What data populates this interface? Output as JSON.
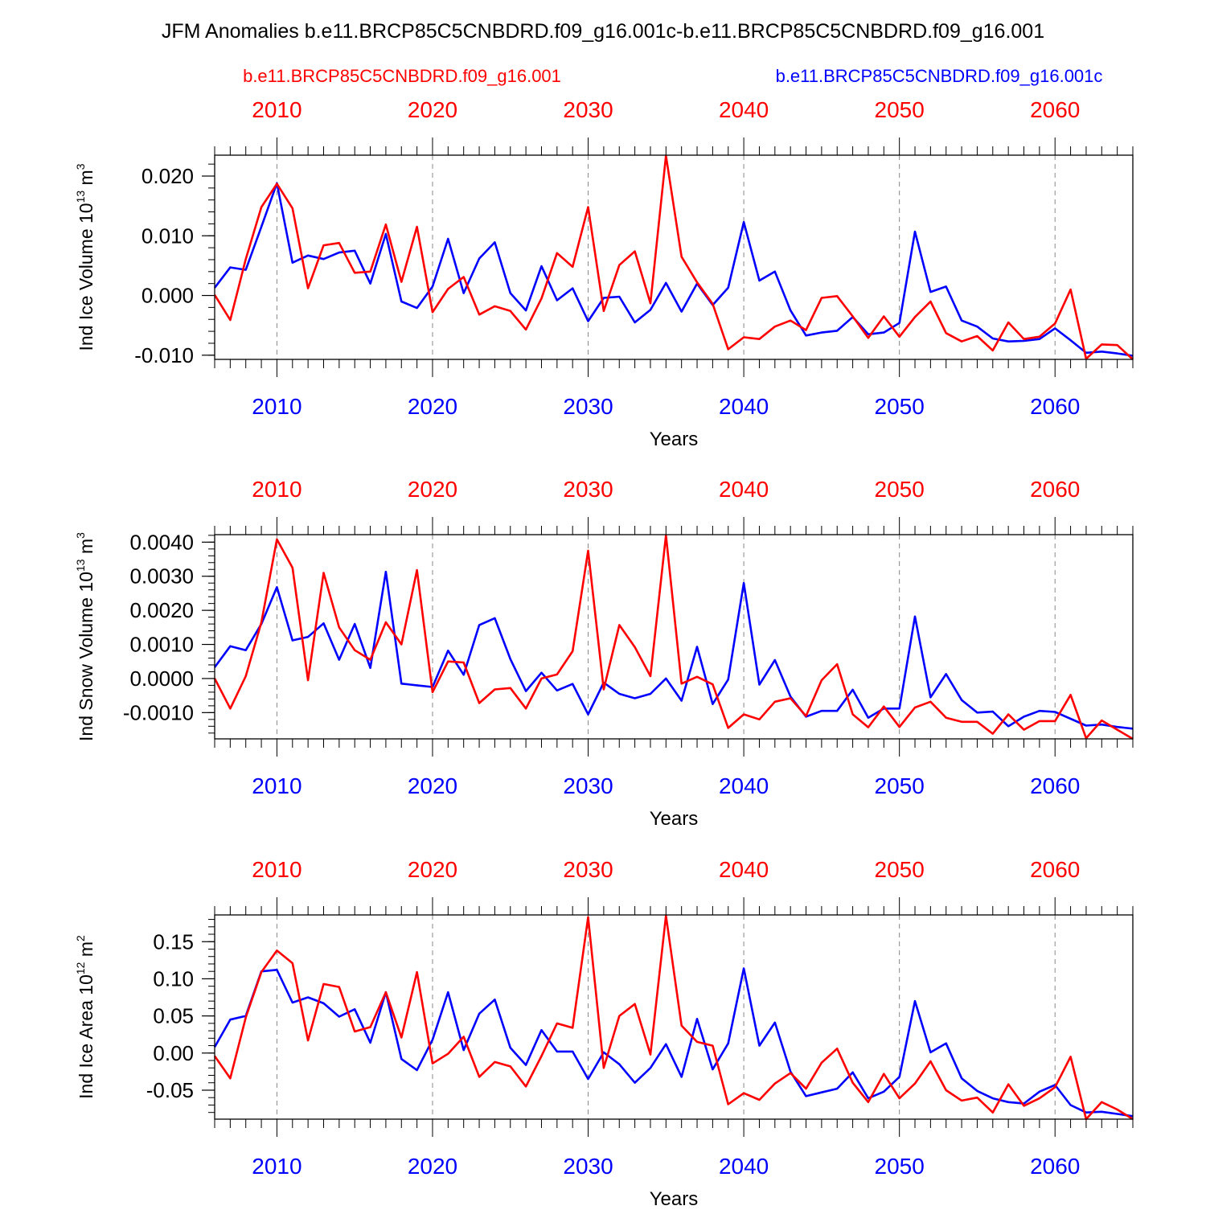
{
  "title": "JFM Anomalies b.e11.BRCP85C5CNBDRD.f09_g16.001c-b.e11.BRCP85C5CNBDRD.f09_g16.001",
  "legend": {
    "red": "b.e11.BRCP85C5CNBDRD.f09_g16.001",
    "blue": "b.e11.BRCP85C5CNBDRD.f09_g16.001c"
  },
  "colors": {
    "red": "#ff0000",
    "blue": "#0000ff",
    "axis": "#000000",
    "grid": "#888888"
  },
  "chart_data": [
    {
      "type": "line",
      "ylabel": "Ind Ice Volume",
      "unit_exp": "13",
      "unit_base": "10",
      "unit_m": "m",
      "unit_pow": "3",
      "xlabel": "Years",
      "xlim": [
        2006,
        2065
      ],
      "ylim": [
        -0.0107,
        0.0235
      ],
      "yticks": [
        -0.01,
        0.0,
        0.01,
        0.02
      ],
      "ytick_labels": [
        "-0.010",
        "0.000",
        "0.010",
        "0.020"
      ],
      "ytick_minor": 0.002,
      "xticks": [
        2010,
        2020,
        2030,
        2040,
        2050,
        2060
      ],
      "xtick_labels": [
        "2010",
        "2020",
        "2030",
        "2040",
        "2050",
        "2060"
      ],
      "x": [
        2006,
        2007,
        2008,
        2009,
        2010,
        2011,
        2012,
        2013,
        2014,
        2015,
        2016,
        2017,
        2018,
        2019,
        2020,
        2021,
        2022,
        2023,
        2024,
        2025,
        2026,
        2027,
        2028,
        2029,
        2030,
        2031,
        2032,
        2033,
        2034,
        2035,
        2036,
        2037,
        2038,
        2039,
        2040,
        2041,
        2042,
        2043,
        2044,
        2045,
        2046,
        2047,
        2048,
        2049,
        2050,
        2051,
        2052,
        2053,
        2054,
        2055,
        2056,
        2057,
        2058,
        2059,
        2060,
        2061,
        2062,
        2063,
        2064,
        2065
      ],
      "series": [
        {
          "name": "b.e11.BRCP85C5CNBDRD.f09_g16.001c",
          "color": "blue",
          "values": [
            0.0013,
            0.0047,
            0.0043,
            0.0115,
            0.0188,
            0.0055,
            0.0067,
            0.0061,
            0.0072,
            0.0075,
            0.002,
            0.0103,
            -0.001,
            -0.0021,
            0.0015,
            0.0095,
            0.0004,
            0.0062,
            0.0089,
            0.0004,
            -0.0025,
            0.0049,
            -0.0008,
            0.0012,
            -0.0043,
            -0.0004,
            -0.0002,
            -0.0045,
            -0.0024,
            0.0021,
            -0.0027,
            0.002,
            -0.0016,
            0.0013,
            0.0123,
            0.0025,
            0.004,
            -0.0025,
            -0.0067,
            -0.0062,
            -0.0059,
            -0.0036,
            -0.0065,
            -0.0062,
            -0.0046,
            0.0107,
            0.0006,
            0.0015,
            -0.0042,
            -0.0052,
            -0.0072,
            -0.0077,
            -0.0076,
            -0.0073,
            -0.0055,
            -0.0075,
            -0.0096,
            -0.0094,
            -0.0097,
            -0.0101
          ]
        },
        {
          "name": "b.e11.BRCP85C5CNBDRD.f09_g16.001",
          "color": "red",
          "values": [
            0.0001,
            -0.0041,
            0.0061,
            0.0148,
            0.0187,
            0.0146,
            0.0012,
            0.0084,
            0.0088,
            0.0038,
            0.004,
            0.0119,
            0.0023,
            0.0115,
            -0.0028,
            0.0011,
            0.0031,
            -0.0032,
            -0.0018,
            -0.0026,
            -0.0057,
            -0.0005,
            0.0071,
            0.0048,
            0.0148,
            -0.0026,
            0.0051,
            0.0074,
            -0.0013,
            0.0234,
            0.0065,
            0.0022,
            -0.0014,
            -0.009,
            -0.007,
            -0.0073,
            -0.0052,
            -0.0042,
            -0.0058,
            -0.0004,
            -0.0001,
            -0.0035,
            -0.0071,
            -0.0035,
            -0.0069,
            -0.0036,
            -0.001,
            -0.0063,
            -0.0077,
            -0.0068,
            -0.0092,
            -0.0045,
            -0.0073,
            -0.0069,
            -0.0047,
            0.001,
            -0.0106,
            -0.0082,
            -0.0083,
            -0.0107
          ]
        }
      ]
    },
    {
      "type": "line",
      "ylabel": "Ind Snow Volume",
      "unit_exp": "13",
      "unit_base": "10",
      "unit_m": "m",
      "unit_pow": "3",
      "xlabel": "Years",
      "xlim": [
        2006,
        2065
      ],
      "ylim": [
        -0.00177,
        0.00422
      ],
      "yticks": [
        -0.001,
        0.0,
        0.001,
        0.002,
        0.003,
        0.004
      ],
      "ytick_labels": [
        "-0.0010",
        "0.0000",
        "0.0010",
        "0.0020",
        "0.0030",
        "0.0040"
      ],
      "ytick_minor": 0.0002,
      "xticks": [
        2010,
        2020,
        2030,
        2040,
        2050,
        2060
      ],
      "xtick_labels": [
        "2010",
        "2020",
        "2030",
        "2040",
        "2050",
        "2060"
      ],
      "x": [
        2006,
        2007,
        2008,
        2009,
        2010,
        2011,
        2012,
        2013,
        2014,
        2015,
        2016,
        2017,
        2018,
        2019,
        2020,
        2021,
        2022,
        2023,
        2024,
        2025,
        2026,
        2027,
        2028,
        2029,
        2030,
        2031,
        2032,
        2033,
        2034,
        2035,
        2036,
        2037,
        2038,
        2039,
        2040,
        2041,
        2042,
        2043,
        2044,
        2045,
        2046,
        2047,
        2048,
        2049,
        2050,
        2051,
        2052,
        2053,
        2054,
        2055,
        2056,
        2057,
        2058,
        2059,
        2060,
        2061,
        2062,
        2063,
        2064,
        2065
      ],
      "series": [
        {
          "name": "b.e11.BRCP85C5CNBDRD.f09_g16.001c",
          "color": "blue",
          "values": [
            0.00033,
            0.00095,
            0.00083,
            0.0016,
            0.00268,
            0.00112,
            0.00122,
            0.00162,
            0.00055,
            0.0016,
            0.00031,
            0.00313,
            -0.00015,
            -0.0002,
            -0.00025,
            0.00082,
            0.00011,
            0.00157,
            0.00177,
            0.00057,
            -0.00037,
            0.00017,
            -0.00035,
            -0.00016,
            -0.00105,
            -0.00012,
            -0.00045,
            -0.00058,
            -0.00045,
            0.0,
            -0.00065,
            0.00093,
            -0.00075,
            -3e-05,
            0.0028,
            -0.00018,
            0.00054,
            -0.00053,
            -0.00112,
            -0.00095,
            -0.00095,
            -0.00033,
            -0.00115,
            -0.00088,
            -0.00088,
            0.00182,
            -0.00055,
            0.00013,
            -0.00063,
            -0.001,
            -0.00097,
            -0.0014,
            -0.00112,
            -0.00095,
            -0.00098,
            -0.00118,
            -0.00138,
            -0.00135,
            -0.00142,
            -0.00147
          ]
        },
        {
          "name": "b.e11.BRCP85C5CNBDRD.f09_g16.001",
          "color": "red",
          "values": [
            0.0,
            -0.00088,
            7e-05,
            0.00165,
            0.00408,
            0.00325,
            -5e-05,
            0.0031,
            0.0015,
            0.00083,
            0.00055,
            0.00165,
            0.001,
            0.00318,
            -0.0004,
            0.0005,
            0.00047,
            -0.00072,
            -0.00032,
            -0.00028,
            -0.00088,
            0.0,
            0.00012,
            0.0008,
            0.00375,
            -0.00032,
            0.00157,
            0.00092,
            7e-05,
            0.0042,
            -0.00015,
            5e-05,
            -0.00017,
            -0.00145,
            -0.00105,
            -0.0012,
            -0.00068,
            -0.00058,
            -0.0011,
            -5e-05,
            0.00042,
            -0.00105,
            -0.00143,
            -0.00082,
            -0.00142,
            -0.00085,
            -0.00068,
            -0.00115,
            -0.00127,
            -0.00127,
            -0.00162,
            -0.00105,
            -0.0015,
            -0.00125,
            -0.00125,
            -0.00048,
            -0.00175,
            -0.00123,
            -0.0015,
            -0.00177
          ]
        }
      ]
    },
    {
      "type": "line",
      "ylabel": "Ind Ice Area",
      "unit_exp": "12",
      "unit_base": "10",
      "unit_m": "m",
      "unit_pow": "2",
      "xlabel": "Years",
      "xlim": [
        2006,
        2065
      ],
      "ylim": [
        -0.089,
        0.186
      ],
      "yticks": [
        -0.05,
        0.0,
        0.05,
        0.1,
        0.15
      ],
      "ytick_labels": [
        "-0.05",
        "0.00",
        "0.05",
        "0.10",
        "0.15"
      ],
      "ytick_minor": 0.01,
      "xticks": [
        2010,
        2020,
        2030,
        2040,
        2050,
        2060
      ],
      "xtick_labels": [
        "2010",
        "2020",
        "2030",
        "2040",
        "2050",
        "2060"
      ],
      "x": [
        2006,
        2007,
        2008,
        2009,
        2010,
        2011,
        2012,
        2013,
        2014,
        2015,
        2016,
        2017,
        2018,
        2019,
        2020,
        2021,
        2022,
        2023,
        2024,
        2025,
        2026,
        2027,
        2028,
        2029,
        2030,
        2031,
        2032,
        2033,
        2034,
        2035,
        2036,
        2037,
        2038,
        2039,
        2040,
        2041,
        2042,
        2043,
        2044,
        2045,
        2046,
        2047,
        2048,
        2049,
        2050,
        2051,
        2052,
        2053,
        2054,
        2055,
        2056,
        2057,
        2058,
        2059,
        2060,
        2061,
        2062,
        2063,
        2064,
        2065
      ],
      "series": [
        {
          "name": "b.e11.BRCP85C5CNBDRD.f09_g16.001c",
          "color": "blue",
          "values": [
            0.008,
            0.045,
            0.05,
            0.11,
            0.112,
            0.068,
            0.075,
            0.067,
            0.049,
            0.059,
            0.014,
            0.082,
            -0.008,
            -0.023,
            0.018,
            0.082,
            0.004,
            0.053,
            0.072,
            0.007,
            -0.016,
            0.031,
            0.002,
            0.002,
            -0.035,
            0.001,
            -0.015,
            -0.04,
            -0.02,
            0.012,
            -0.032,
            0.046,
            -0.022,
            0.013,
            0.114,
            0.01,
            0.041,
            -0.025,
            -0.058,
            -0.053,
            -0.048,
            -0.026,
            -0.061,
            -0.052,
            -0.032,
            0.07,
            0.001,
            0.013,
            -0.034,
            -0.051,
            -0.061,
            -0.066,
            -0.068,
            -0.052,
            -0.043,
            -0.07,
            -0.08,
            -0.079,
            -0.082,
            -0.085
          ]
        },
        {
          "name": "b.e11.BRCP85C5CNBDRD.f09_g16.001",
          "color": "red",
          "values": [
            -0.004,
            -0.034,
            0.048,
            0.109,
            0.138,
            0.121,
            0.017,
            0.093,
            0.089,
            0.029,
            0.035,
            0.082,
            0.021,
            0.109,
            -0.014,
            -0.001,
            0.022,
            -0.032,
            -0.012,
            -0.018,
            -0.045,
            -0.004,
            0.04,
            0.034,
            0.183,
            -0.02,
            0.05,
            0.066,
            -0.002,
            0.185,
            0.037,
            0.015,
            0.01,
            -0.069,
            -0.054,
            -0.063,
            -0.041,
            -0.027,
            -0.048,
            -0.013,
            0.006,
            -0.04,
            -0.066,
            -0.028,
            -0.061,
            -0.041,
            -0.011,
            -0.05,
            -0.064,
            -0.06,
            -0.08,
            -0.042,
            -0.071,
            -0.061,
            -0.046,
            -0.005,
            -0.089,
            -0.066,
            -0.076,
            -0.089
          ]
        }
      ]
    }
  ]
}
